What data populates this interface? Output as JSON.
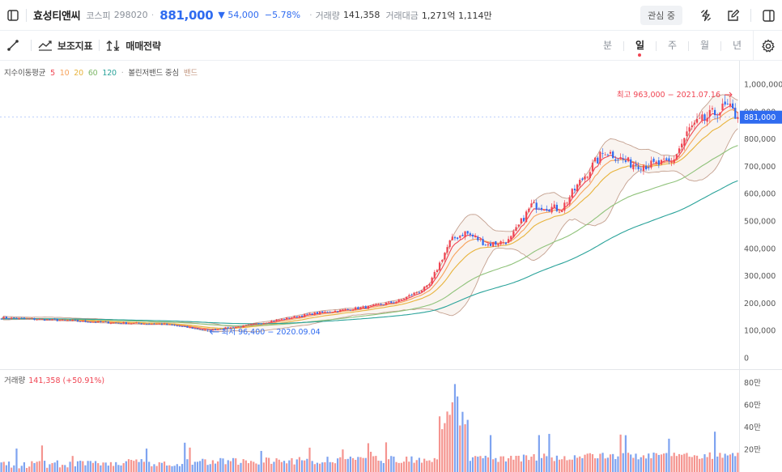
{
  "header": {
    "name": "효성티앤씨",
    "market": "코스피",
    "code": "298020",
    "price": "881,000",
    "change_arrow": "▼",
    "change": "54,000",
    "change_pct": "−5.78%",
    "volume_label": "거래량",
    "volume": "141,358",
    "amount_label": "거래대금",
    "amount": "1,271억 1,114만",
    "favorite": "관심 중",
    "icons": [
      "sidebar-toggle-icon",
      "lightning-icon",
      "edit-icon",
      "layout-panel-icon"
    ]
  },
  "toolbar": {
    "draw_icon": "draw-line-icon",
    "indicator_label": "보조지표",
    "strategy_label": "매매전략",
    "periods": [
      "분",
      "일",
      "주",
      "월",
      "년"
    ],
    "active_period": "일",
    "settings_icon": "gear-icon"
  },
  "legend": {
    "ma_label": "지수이동평균",
    "ma_periods": [
      "5",
      "10",
      "20",
      "60",
      "120"
    ],
    "ma_colors": [
      "#f04452",
      "#f7a35c",
      "#e8b33c",
      "#8fc27a",
      "#2aa39a"
    ],
    "bb_label": "볼린저밴드 중심",
    "bb_suffix": "밴드",
    "bb_color": "#c4a08f"
  },
  "colors": {
    "up": "#f04452",
    "down": "#2f6bf0",
    "volume_up": "#f5948f",
    "volume_down": "#7ea3f0",
    "price_tag": "#2f6bf0"
  },
  "chart_data": {
    "type": "candlestick",
    "price_axis": {
      "ticks": [
        "1,000,000",
        "900,000",
        "800,000",
        "700,000",
        "600,000",
        "500,000",
        "400,000",
        "300,000",
        "200,000",
        "100,000",
        "0"
      ],
      "ylim": [
        0,
        1000000
      ]
    },
    "current_price": 881000,
    "current_price_label": "881,000",
    "annotations": {
      "high_label": "최고 963,000 − 2021.07.16",
      "high_value": 963000,
      "low_label": "최저 96,400 − 2020.09.04",
      "low_value": 96400
    },
    "volume": {
      "label": "거래량",
      "value": "141,358 (+50.91%)",
      "ticks": [
        "80만",
        "60만",
        "40만",
        "20만"
      ],
      "ylim": [
        0,
        800000
      ]
    }
  }
}
